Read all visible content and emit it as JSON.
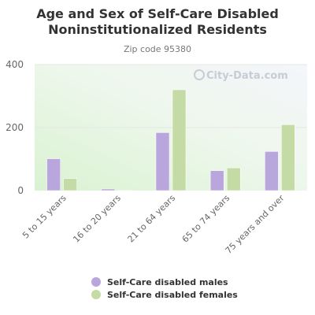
{
  "chart_data": {
    "type": "bar",
    "title_lines": [
      "Age and Sex of Self-Care Disabled",
      "Noninstitutionalized Residents"
    ],
    "subtitle": "Zip code 95380",
    "categories": [
      "5 to 15 years",
      "16 to 20 years",
      "21 to 64 years",
      "65 to 74 years",
      "75 years and over"
    ],
    "series": [
      {
        "name": "Self-Care disabled males",
        "color": "#b9a6dc",
        "values": [
          101,
          5,
          184,
          63,
          124
        ]
      },
      {
        "name": "Self-Care disabled females",
        "color": "#c5dba6",
        "values": [
          38,
          2,
          320,
          72,
          209
        ]
      }
    ],
    "ylim": [
      0,
      400
    ],
    "yticks": [
      0,
      200,
      400
    ],
    "ytick_labels": [
      "0",
      "200",
      "400"
    ],
    "grid": true,
    "legend_position": "bottom",
    "watermark": "City-Data.com"
  }
}
